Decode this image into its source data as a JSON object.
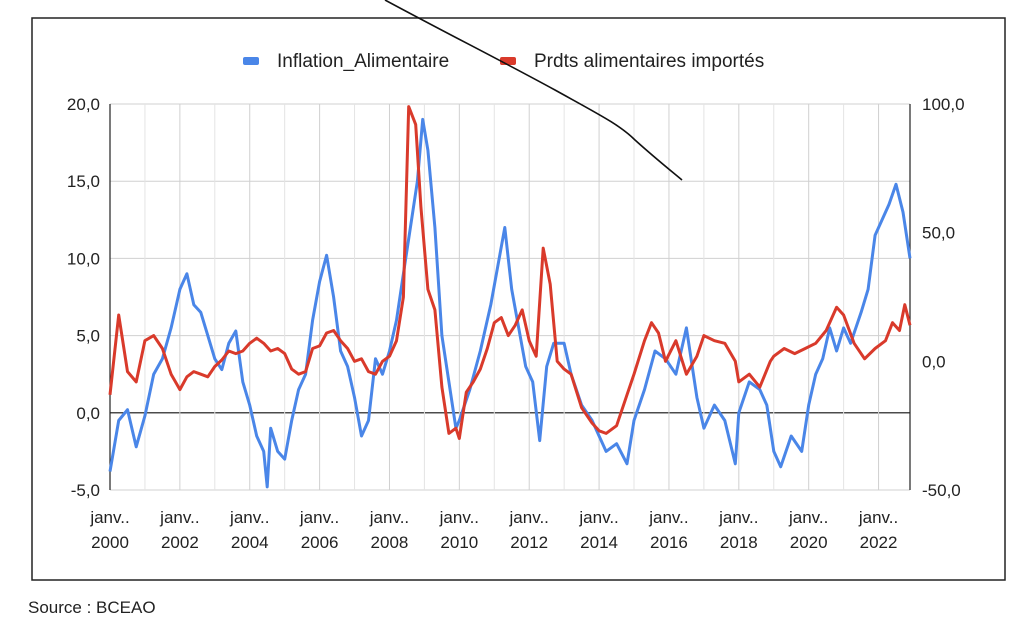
{
  "chart_data": {
    "type": "line",
    "title": "",
    "xlabel": "",
    "ylabel": "",
    "x_ticks": [
      {
        "line1": "janv..",
        "line2": "2000",
        "year": 2000
      },
      {
        "line1": "janv..",
        "line2": "2002",
        "year": 2002
      },
      {
        "line1": "janv..",
        "line2": "2004",
        "year": 2004
      },
      {
        "line1": "janv..",
        "line2": "2006",
        "year": 2006
      },
      {
        "line1": "janv..",
        "line2": "2008",
        "year": 2008
      },
      {
        "line1": "janv..",
        "line2": "2010",
        "year": 2010
      },
      {
        "line1": "janv..",
        "line2": "2012",
        "year": 2012
      },
      {
        "line1": "janv..",
        "line2": "2014",
        "year": 2014
      },
      {
        "line1": "janv..",
        "line2": "2016",
        "year": 2016
      },
      {
        "line1": "janv..",
        "line2": "2018",
        "year": 2018
      },
      {
        "line1": "janv..",
        "line2": "2020",
        "year": 2020
      },
      {
        "line1": "janv..",
        "line2": "2022",
        "year": 2022
      }
    ],
    "x_range": [
      2000,
      2022.9
    ],
    "y_left": {
      "min": -5,
      "max": 20,
      "ticks": [
        -5,
        0,
        5,
        10,
        15,
        20
      ],
      "tick_labels": [
        "-5,0",
        "0,0",
        "5,0",
        "10,0",
        "15,0",
        "20,0"
      ]
    },
    "y_right": {
      "min": -50,
      "max": 100,
      "ticks": [
        -50,
        0,
        50,
        100
      ],
      "tick_labels": [
        "-50,0",
        "0,0",
        "50,0",
        "100,0"
      ]
    },
    "grid": true,
    "legend_position": "top-center",
    "series": [
      {
        "name": "Inflation_Alimentaire",
        "axis": "left",
        "color": "#4a86e8",
        "points": [
          [
            2000.0,
            -3.8
          ],
          [
            2000.25,
            -0.5
          ],
          [
            2000.5,
            0.2
          ],
          [
            2000.75,
            -2.2
          ],
          [
            2001.0,
            -0.2
          ],
          [
            2001.25,
            2.5
          ],
          [
            2001.5,
            3.5
          ],
          [
            2001.75,
            5.5
          ],
          [
            2002.0,
            8.0
          ],
          [
            2002.2,
            9.0
          ],
          [
            2002.4,
            7.0
          ],
          [
            2002.6,
            6.5
          ],
          [
            2002.8,
            5.0
          ],
          [
            2003.0,
            3.5
          ],
          [
            2003.2,
            2.8
          ],
          [
            2003.4,
            4.5
          ],
          [
            2003.6,
            5.3
          ],
          [
            2003.8,
            2.0
          ],
          [
            2004.0,
            0.5
          ],
          [
            2004.2,
            -1.5
          ],
          [
            2004.4,
            -2.5
          ],
          [
            2004.5,
            -4.8
          ],
          [
            2004.6,
            -1.0
          ],
          [
            2004.8,
            -2.5
          ],
          [
            2005.0,
            -3.0
          ],
          [
            2005.2,
            -0.5
          ],
          [
            2005.4,
            1.5
          ],
          [
            2005.6,
            2.5
          ],
          [
            2005.8,
            6.0
          ],
          [
            2006.0,
            8.5
          ],
          [
            2006.2,
            10.2
          ],
          [
            2006.4,
            7.5
          ],
          [
            2006.6,
            4.0
          ],
          [
            2006.8,
            3.0
          ],
          [
            2007.0,
            1.0
          ],
          [
            2007.2,
            -1.5
          ],
          [
            2007.4,
            -0.5
          ],
          [
            2007.6,
            3.5
          ],
          [
            2007.8,
            2.5
          ],
          [
            2008.0,
            4.0
          ],
          [
            2008.2,
            6.0
          ],
          [
            2008.4,
            9.0
          ],
          [
            2008.6,
            12.0
          ],
          [
            2008.8,
            15.0
          ],
          [
            2008.95,
            19.0
          ],
          [
            2009.1,
            17.0
          ],
          [
            2009.3,
            12.0
          ],
          [
            2009.5,
            5.0
          ],
          [
            2009.7,
            2.0
          ],
          [
            2009.9,
            -1.0
          ],
          [
            2010.0,
            -0.5
          ],
          [
            2010.3,
            1.5
          ],
          [
            2010.6,
            4.0
          ],
          [
            2010.9,
            7.0
          ],
          [
            2011.1,
            9.5
          ],
          [
            2011.3,
            12.0
          ],
          [
            2011.5,
            8.0
          ],
          [
            2011.7,
            5.5
          ],
          [
            2011.9,
            3.0
          ],
          [
            2012.1,
            2.0
          ],
          [
            2012.3,
            -1.8
          ],
          [
            2012.5,
            3.0
          ],
          [
            2012.7,
            4.5
          ],
          [
            2013.0,
            4.5
          ],
          [
            2013.2,
            2.5
          ],
          [
            2013.5,
            0.5
          ],
          [
            2013.8,
            -0.5
          ],
          [
            2014.0,
            -1.5
          ],
          [
            2014.2,
            -2.5
          ],
          [
            2014.5,
            -2.0
          ],
          [
            2014.8,
            -3.3
          ],
          [
            2015.0,
            -0.5
          ],
          [
            2015.3,
            1.5
          ],
          [
            2015.6,
            4.0
          ],
          [
            2015.9,
            3.5
          ],
          [
            2016.2,
            2.5
          ],
          [
            2016.5,
            5.5
          ],
          [
            2016.8,
            1.0
          ],
          [
            2017.0,
            -1.0
          ],
          [
            2017.3,
            0.5
          ],
          [
            2017.6,
            -0.5
          ],
          [
            2017.9,
            -3.3
          ],
          [
            2018.0,
            0.0
          ],
          [
            2018.3,
            2.0
          ],
          [
            2018.6,
            1.5
          ],
          [
            2018.8,
            0.5
          ],
          [
            2019.0,
            -2.5
          ],
          [
            2019.2,
            -3.5
          ],
          [
            2019.5,
            -1.5
          ],
          [
            2019.8,
            -2.5
          ],
          [
            2020.0,
            0.5
          ],
          [
            2020.2,
            2.5
          ],
          [
            2020.4,
            3.5
          ],
          [
            2020.6,
            5.5
          ],
          [
            2020.8,
            4.0
          ],
          [
            2021.0,
            5.5
          ],
          [
            2021.2,
            4.5
          ],
          [
            2021.5,
            6.5
          ],
          [
            2021.7,
            8.0
          ],
          [
            2021.9,
            11.5
          ],
          [
            2022.1,
            12.5
          ],
          [
            2022.3,
            13.5
          ],
          [
            2022.5,
            14.8
          ],
          [
            2022.7,
            13.0
          ],
          [
            2022.9,
            10.0
          ]
        ]
      },
      {
        "name": "Prdts alimentaires importés",
        "axis": "right",
        "color": "#d93a2b",
        "points": [
          [
            2000.0,
            -13.0
          ],
          [
            2000.25,
            18.0
          ],
          [
            2000.5,
            -4.0
          ],
          [
            2000.75,
            -8.0
          ],
          [
            2001.0,
            8.0
          ],
          [
            2001.25,
            10.0
          ],
          [
            2001.5,
            5.0
          ],
          [
            2001.75,
            -5.0
          ],
          [
            2002.0,
            -11.0
          ],
          [
            2002.2,
            -6.0
          ],
          [
            2002.4,
            -4.0
          ],
          [
            2002.6,
            -5.0
          ],
          [
            2002.8,
            -6.0
          ],
          [
            2003.0,
            -2.0
          ],
          [
            2003.2,
            0.5
          ],
          [
            2003.4,
            4.0
          ],
          [
            2003.6,
            3.0
          ],
          [
            2003.8,
            4.0
          ],
          [
            2004.0,
            7.0
          ],
          [
            2004.2,
            9.0
          ],
          [
            2004.4,
            7.0
          ],
          [
            2004.6,
            4.0
          ],
          [
            2004.8,
            5.0
          ],
          [
            2005.0,
            3.0
          ],
          [
            2005.2,
            -3.0
          ],
          [
            2005.4,
            -5.0
          ],
          [
            2005.6,
            -4.0
          ],
          [
            2005.8,
            5.0
          ],
          [
            2006.0,
            6.0
          ],
          [
            2006.2,
            11.0
          ],
          [
            2006.4,
            12.0
          ],
          [
            2006.6,
            8.0
          ],
          [
            2006.8,
            5.0
          ],
          [
            2007.0,
            0.0
          ],
          [
            2007.2,
            1.0
          ],
          [
            2007.4,
            -4.0
          ],
          [
            2007.6,
            -5.0
          ],
          [
            2007.8,
            0.0
          ],
          [
            2008.0,
            2.0
          ],
          [
            2008.2,
            8.0
          ],
          [
            2008.4,
            25.0
          ],
          [
            2008.55,
            99.0
          ],
          [
            2008.75,
            92.0
          ],
          [
            2008.9,
            60.0
          ],
          [
            2009.1,
            28.0
          ],
          [
            2009.3,
            20.0
          ],
          [
            2009.5,
            -10.0
          ],
          [
            2009.7,
            -28.0
          ],
          [
            2009.9,
            -26.0
          ],
          [
            2010.0,
            -30.0
          ],
          [
            2010.2,
            -12.0
          ],
          [
            2010.4,
            -8.0
          ],
          [
            2010.6,
            -3.0
          ],
          [
            2010.8,
            5.0
          ],
          [
            2011.0,
            15.0
          ],
          [
            2011.2,
            17.0
          ],
          [
            2011.4,
            10.0
          ],
          [
            2011.6,
            14.0
          ],
          [
            2011.8,
            20.0
          ],
          [
            2012.0,
            8.0
          ],
          [
            2012.2,
            2.0
          ],
          [
            2012.4,
            44.0
          ],
          [
            2012.6,
            30.0
          ],
          [
            2012.8,
            0.0
          ],
          [
            2013.0,
            -3.0
          ],
          [
            2013.2,
            -5.0
          ],
          [
            2013.5,
            -18.0
          ],
          [
            2013.8,
            -24.0
          ],
          [
            2014.0,
            -27.0
          ],
          [
            2014.2,
            -28.0
          ],
          [
            2014.5,
            -25.0
          ],
          [
            2014.8,
            -13.0
          ],
          [
            2015.0,
            -5.0
          ],
          [
            2015.3,
            8.0
          ],
          [
            2015.5,
            15.0
          ],
          [
            2015.7,
            11.0
          ],
          [
            2015.9,
            0.0
          ],
          [
            2016.2,
            8.0
          ],
          [
            2016.5,
            -5.0
          ],
          [
            2016.8,
            2.0
          ],
          [
            2017.0,
            10.0
          ],
          [
            2017.3,
            8.0
          ],
          [
            2017.6,
            7.0
          ],
          [
            2017.9,
            0.0
          ],
          [
            2018.0,
            -8.0
          ],
          [
            2018.3,
            -5.0
          ],
          [
            2018.6,
            -10.0
          ],
          [
            2018.9,
            0.0
          ],
          [
            2019.0,
            2.0
          ],
          [
            2019.3,
            5.0
          ],
          [
            2019.6,
            3.0
          ],
          [
            2019.9,
            5.0
          ],
          [
            2020.2,
            7.0
          ],
          [
            2020.5,
            12.0
          ],
          [
            2020.8,
            21.0
          ],
          [
            2021.0,
            18.0
          ],
          [
            2021.3,
            7.0
          ],
          [
            2021.6,
            1.0
          ],
          [
            2021.9,
            5.0
          ],
          [
            2022.2,
            8.0
          ],
          [
            2022.4,
            15.0
          ],
          [
            2022.6,
            12.0
          ],
          [
            2022.75,
            22.0
          ],
          [
            2022.9,
            14.0
          ]
        ]
      }
    ],
    "annotations": []
  },
  "source_note": "Source : BCEAO"
}
